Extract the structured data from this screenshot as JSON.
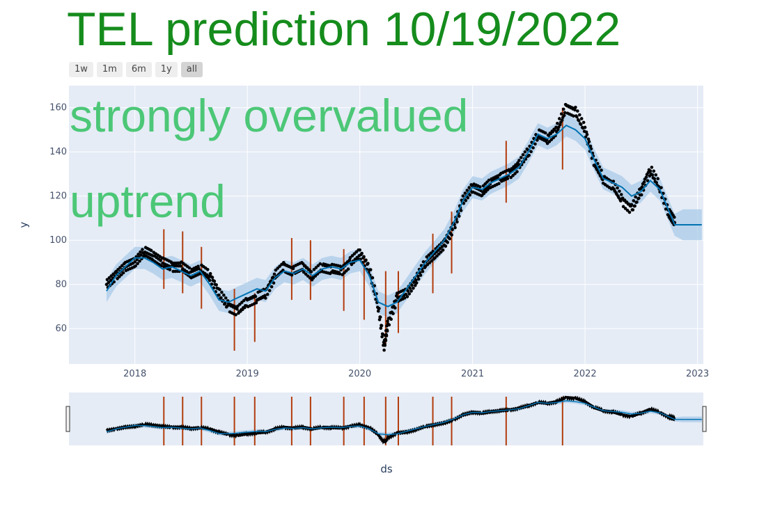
{
  "title": "TEL prediction 10/19/2022",
  "range_buttons": [
    "1w",
    "1m",
    "6m",
    "1y",
    "all"
  ],
  "range_selected": "all",
  "annotations": [
    "strongly overvalued",
    "uptrend"
  ],
  "colors": {
    "title": "#158c1c",
    "annotation": "#4cc777",
    "plot_bg": "#e5ecf6",
    "observed": "#000000",
    "forecast": "#0072b2",
    "uncertainty": "#a9cbe8",
    "changepoint": "#b23c0c"
  },
  "chart_data": {
    "type": "scatter",
    "xlabel": "ds",
    "ylabel": "y",
    "x_ticks": [
      "2018",
      "2019",
      "2020",
      "2021",
      "2022",
      "2023"
    ],
    "y_ticks": [
      60,
      80,
      100,
      120,
      140,
      160
    ],
    "xlim": [
      "2017-06-01",
      "2023-01-20"
    ],
    "ylim": [
      44,
      170
    ],
    "observed_points": [
      [
        "2017-10-01",
        80
      ],
      [
        "2017-11-01",
        84
      ],
      [
        "2017-12-01",
        88
      ],
      [
        "2018-01-01",
        90
      ],
      [
        "2018-02-01",
        95
      ],
      [
        "2018-03-01",
        93
      ],
      [
        "2018-04-01",
        90
      ],
      [
        "2018-05-01",
        88
      ],
      [
        "2018-06-01",
        88
      ],
      [
        "2018-07-01",
        85
      ],
      [
        "2018-08-01",
        87
      ],
      [
        "2018-09-01",
        84
      ],
      [
        "2018-10-01",
        76
      ],
      [
        "2018-11-01",
        70
      ],
      [
        "2018-12-01",
        68
      ],
      [
        "2019-01-01",
        72
      ],
      [
        "2019-02-01",
        74
      ],
      [
        "2019-03-01",
        76
      ],
      [
        "2019-04-01",
        84
      ],
      [
        "2019-05-01",
        88
      ],
      [
        "2019-06-01",
        86
      ],
      [
        "2019-07-01",
        88
      ],
      [
        "2019-08-01",
        84
      ],
      [
        "2019-09-01",
        88
      ],
      [
        "2019-10-01",
        87
      ],
      [
        "2019-11-01",
        86
      ],
      [
        "2019-12-01",
        90
      ],
      [
        "2020-01-01",
        94
      ],
      [
        "2020-02-01",
        87
      ],
      [
        "2020-03-01",
        70
      ],
      [
        "2020-03-20",
        52
      ],
      [
        "2020-04-01",
        62
      ],
      [
        "2020-05-01",
        74
      ],
      [
        "2020-06-01",
        76
      ],
      [
        "2020-07-01",
        82
      ],
      [
        "2020-08-01",
        90
      ],
      [
        "2020-09-01",
        94
      ],
      [
        "2020-10-01",
        98
      ],
      [
        "2020-11-01",
        106
      ],
      [
        "2020-12-01",
        118
      ],
      [
        "2021-01-01",
        124
      ],
      [
        "2021-02-01",
        122
      ],
      [
        "2021-03-01",
        126
      ],
      [
        "2021-04-01",
        128
      ],
      [
        "2021-05-01",
        130
      ],
      [
        "2021-06-01",
        134
      ],
      [
        "2021-07-01",
        140
      ],
      [
        "2021-08-01",
        148
      ],
      [
        "2021-09-01",
        146
      ],
      [
        "2021-10-01",
        150
      ],
      [
        "2021-11-01",
        160
      ],
      [
        "2021-12-01",
        158
      ],
      [
        "2022-01-01",
        150
      ],
      [
        "2022-02-01",
        135
      ],
      [
        "2022-03-01",
        128
      ],
      [
        "2022-04-01",
        125
      ],
      [
        "2022-05-01",
        118
      ],
      [
        "2022-06-01",
        114
      ],
      [
        "2022-07-01",
        122
      ],
      [
        "2022-08-01",
        132
      ],
      [
        "2022-09-01",
        124
      ],
      [
        "2022-10-01",
        112
      ],
      [
        "2022-10-19",
        108
      ]
    ],
    "forecast": [
      [
        "2017-10-01",
        77
      ],
      [
        "2017-11-01",
        84
      ],
      [
        "2017-12-01",
        88
      ],
      [
        "2018-01-01",
        92
      ],
      [
        "2018-02-01",
        92
      ],
      [
        "2018-03-01",
        90
      ],
      [
        "2018-04-01",
        87
      ],
      [
        "2018-05-01",
        88
      ],
      [
        "2018-06-01",
        86
      ],
      [
        "2018-07-01",
        84
      ],
      [
        "2018-08-01",
        86
      ],
      [
        "2018-09-01",
        80
      ],
      [
        "2018-10-01",
        73
      ],
      [
        "2018-11-01",
        72
      ],
      [
        "2018-12-01",
        74
      ],
      [
        "2019-01-01",
        76
      ],
      [
        "2019-02-01",
        78
      ],
      [
        "2019-03-01",
        77
      ],
      [
        "2019-04-01",
        83
      ],
      [
        "2019-05-01",
        86
      ],
      [
        "2019-06-01",
        85
      ],
      [
        "2019-07-01",
        87
      ],
      [
        "2019-08-01",
        84
      ],
      [
        "2019-09-01",
        87
      ],
      [
        "2019-10-01",
        88
      ],
      [
        "2019-11-01",
        87
      ],
      [
        "2019-12-01",
        90
      ],
      [
        "2020-01-01",
        91
      ],
      [
        "2020-02-01",
        84
      ],
      [
        "2020-03-01",
        72
      ],
      [
        "2020-04-01",
        70
      ],
      [
        "2020-05-01",
        72
      ],
      [
        "2020-06-01",
        78
      ],
      [
        "2020-07-01",
        84
      ],
      [
        "2020-08-01",
        90
      ],
      [
        "2020-09-01",
        95
      ],
      [
        "2020-10-01",
        100
      ],
      [
        "2020-11-01",
        108
      ],
      [
        "2020-12-01",
        118
      ],
      [
        "2021-01-01",
        124
      ],
      [
        "2021-02-01",
        123
      ],
      [
        "2021-03-01",
        126
      ],
      [
        "2021-04-01",
        128
      ],
      [
        "2021-05-01",
        130
      ],
      [
        "2021-06-01",
        133
      ],
      [
        "2021-07-01",
        140
      ],
      [
        "2021-08-01",
        148
      ],
      [
        "2021-09-01",
        146
      ],
      [
        "2021-10-01",
        148
      ],
      [
        "2021-11-01",
        152
      ],
      [
        "2021-12-01",
        150
      ],
      [
        "2022-01-01",
        146
      ],
      [
        "2022-02-01",
        136
      ],
      [
        "2022-03-01",
        128
      ],
      [
        "2022-04-01",
        126
      ],
      [
        "2022-05-01",
        124
      ],
      [
        "2022-06-01",
        120
      ],
      [
        "2022-07-01",
        122
      ],
      [
        "2022-08-01",
        127
      ],
      [
        "2022-09-01",
        123
      ],
      [
        "2022-10-01",
        113
      ],
      [
        "2022-10-19",
        107
      ],
      [
        "2022-11-15",
        107
      ],
      [
        "2023-01-15",
        107
      ]
    ],
    "uncertainty_width": 5,
    "forecast_uncertainty_width_end": 7,
    "changepoints": [
      [
        "2018-04-05",
        78,
        105
      ],
      [
        "2018-06-05",
        76,
        104
      ],
      [
        "2018-08-05",
        69,
        97
      ],
      [
        "2018-11-20",
        50,
        78
      ],
      [
        "2019-01-25",
        54,
        76
      ],
      [
        "2019-05-25",
        73,
        101
      ],
      [
        "2019-07-25",
        73,
        100
      ],
      [
        "2019-11-10",
        68,
        96
      ],
      [
        "2020-01-15",
        64,
        92
      ],
      [
        "2020-03-25",
        53,
        86
      ],
      [
        "2020-05-05",
        58,
        86
      ],
      [
        "2020-08-25",
        76,
        103
      ],
      [
        "2020-10-25",
        85,
        113
      ],
      [
        "2021-04-20",
        117,
        145
      ],
      [
        "2021-10-20",
        132,
        160
      ]
    ]
  }
}
